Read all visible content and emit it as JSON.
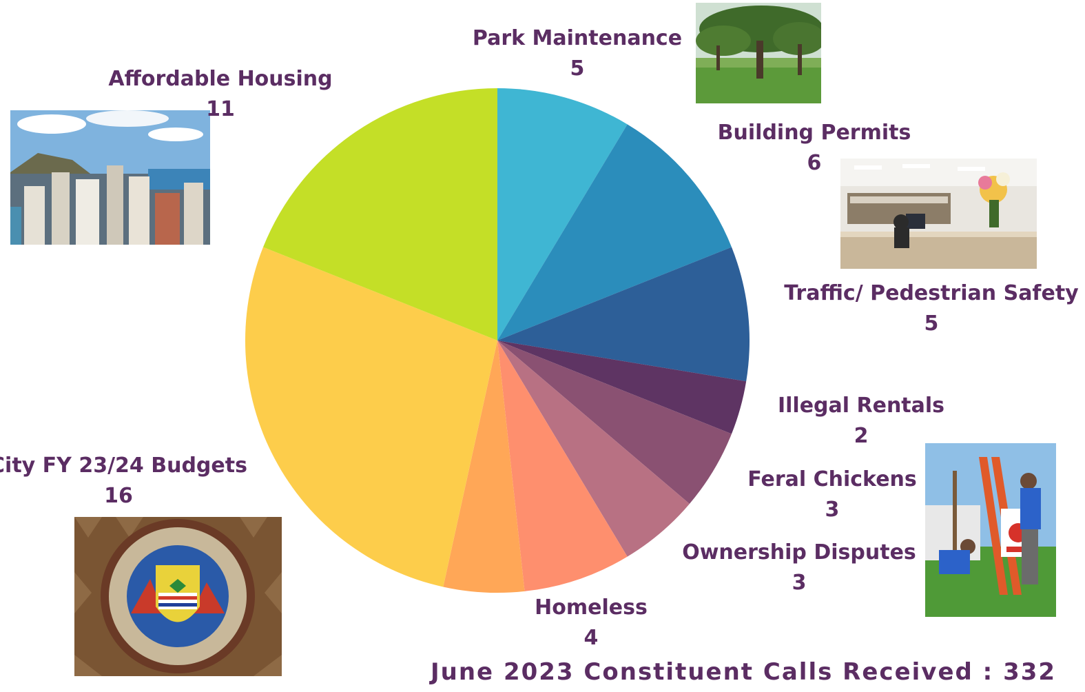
{
  "title": "June 2023 Constituent Calls Received : 332",
  "chart_data": {
    "type": "pie",
    "title": "June 2023 Constituent Calls Received : 332",
    "start_angle_deg": 0,
    "direction": "clockwise",
    "slices": [
      {
        "label": "Park Maintenance",
        "value": 5,
        "color": "#3fb6d3"
      },
      {
        "label": "Building Permits",
        "value": 6,
        "color": "#2b8dbb"
      },
      {
        "label": "Traffic/ Pedestrian Safety",
        "value": 5,
        "color": "#2d5f98"
      },
      {
        "label": "Illegal Rentals",
        "value": 2,
        "color": "#5e3463"
      },
      {
        "label": "Feral Chickens",
        "value": 3,
        "color": "#8a5172"
      },
      {
        "label": "Ownership Disputes",
        "value": 3,
        "color": "#b87183"
      },
      {
        "label": "Homeless",
        "value": 4,
        "color": "#fe8f6e"
      },
      {
        "label": "",
        "value": 3,
        "color": "#ffa757"
      },
      {
        "label": "City FY 23/24 Budgets",
        "value": 16,
        "color": "#fdcd4b"
      },
      {
        "label": "Affordable Housing",
        "value": 11,
        "color": "#c4df27"
      }
    ]
  }
}
